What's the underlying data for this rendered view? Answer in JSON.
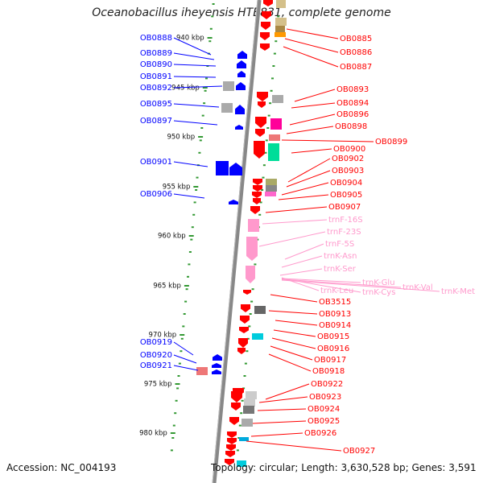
{
  "title": "Oceanobacillus iheyensis HTE831, complete genome",
  "accession": "Accession: NC_004193",
  "summary": "Topology: circular; Length: 3,630,528 bp; Genes: 3,591",
  "colors": {
    "forward_gene": "#0000ff",
    "reverse_gene": "#ff0000",
    "rna_gene": "#ff99cc",
    "ruler_tick": "#339933",
    "backbone": "#888888"
  },
  "scale_labels": [
    "940 kbp",
    "945 kbp",
    "950 kbp",
    "955 kbp",
    "960 kbp",
    "965 kbp",
    "970 kbp",
    "975 kbp",
    "980 kbp"
  ],
  "left_labels": [
    "OB0888",
    "OB0889",
    "OB0890",
    "OB0891",
    "OB0892",
    "OB0895",
    "OB0897",
    "OB0901",
    "OB0906",
    "OB0919",
    "OB0920",
    "OB0921"
  ],
  "right_labels": [
    "OB0885",
    "OB0886",
    "OB0887",
    "OB0893",
    "OB0894",
    "OB0896",
    "OB0898",
    "OB0899",
    "OB0900",
    "OB0902",
    "OB0903",
    "OB0904",
    "OB0905",
    "OB0907",
    "OB3515",
    "OB0913",
    "OB0914",
    "OB0915",
    "OB0916",
    "OB0917",
    "OB0918",
    "OB0922",
    "OB0923",
    "OB0924",
    "OB0925",
    "OB0926",
    "OB0927"
  ],
  "rna_labels": [
    "trnF-16S",
    "trnF-23S",
    "trnF-5S",
    "trnK-Asn",
    "trnK-Ser",
    "trnK-Glu",
    "trnK-Val",
    "trnK-Leu",
    "trnK-Cys",
    "trnK-Met"
  ]
}
